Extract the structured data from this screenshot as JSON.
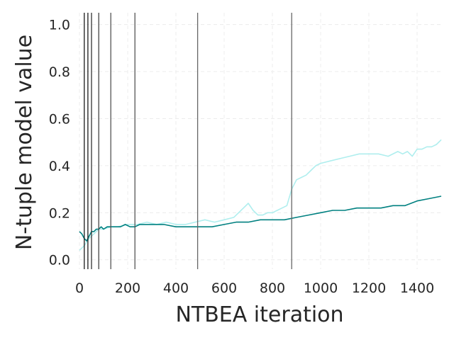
{
  "chart_data": {
    "type": "line",
    "xlabel": "NTBEA iteration",
    "ylabel": "N-tuple model value",
    "xlim": [
      0,
      1500
    ],
    "ylim": [
      -0.04,
      1.05
    ],
    "xticks": [
      0,
      200,
      400,
      600,
      800,
      1000,
      1200,
      1400
    ],
    "xtick_labels": [
      "0",
      "200",
      "400",
      "600",
      "800",
      "1000",
      "1200",
      "1400"
    ],
    "yticks": [
      0.0,
      0.2,
      0.4,
      0.6,
      0.8,
      1.0
    ],
    "ytick_labels": [
      "0.0",
      "0.2",
      "0.4",
      "0.6",
      "0.8",
      "1.0"
    ],
    "grid": true,
    "vertical_lines": [
      {
        "x": 20,
        "color": "#1a1a1a"
      },
      {
        "x": 35,
        "color": "#1a1a1a"
      },
      {
        "x": 50,
        "color": "#333333"
      },
      {
        "x": 80,
        "color": "#444444"
      },
      {
        "x": 130,
        "color": "#555555"
      },
      {
        "x": 230,
        "color": "#555555"
      },
      {
        "x": 490,
        "color": "#666666"
      },
      {
        "x": 880,
        "color": "#666666"
      }
    ],
    "series": [
      {
        "color": "#AFEEEE",
        "x": [
          0,
          20,
          40,
          60,
          80,
          100,
          130,
          160,
          200,
          240,
          280,
          320,
          360,
          400,
          440,
          480,
          520,
          560,
          600,
          640,
          660,
          680,
          700,
          720,
          740,
          760,
          780,
          800,
          820,
          840,
          860,
          880,
          900,
          920,
          940,
          960,
          980,
          1000,
          1040,
          1080,
          1120,
          1160,
          1200,
          1240,
          1280,
          1320,
          1340,
          1360,
          1380,
          1400,
          1420,
          1440,
          1460,
          1480,
          1500
        ],
        "y": [
          0.04,
          0.06,
          0.09,
          0.11,
          0.13,
          0.13,
          0.14,
          0.14,
          0.15,
          0.15,
          0.16,
          0.15,
          0.16,
          0.15,
          0.15,
          0.16,
          0.17,
          0.16,
          0.17,
          0.18,
          0.2,
          0.22,
          0.24,
          0.21,
          0.19,
          0.19,
          0.2,
          0.2,
          0.21,
          0.22,
          0.23,
          0.3,
          0.34,
          0.35,
          0.36,
          0.38,
          0.4,
          0.41,
          0.42,
          0.43,
          0.44,
          0.45,
          0.45,
          0.45,
          0.44,
          0.46,
          0.45,
          0.46,
          0.44,
          0.47,
          0.47,
          0.48,
          0.48,
          0.49,
          0.51
        ]
      },
      {
        "color": "#008080",
        "x": [
          0,
          10,
          20,
          30,
          40,
          50,
          60,
          70,
          80,
          90,
          100,
          115,
          130,
          150,
          170,
          190,
          210,
          230,
          250,
          300,
          350,
          400,
          450,
          500,
          550,
          600,
          650,
          700,
          750,
          800,
          850,
          900,
          950,
          1000,
          1050,
          1100,
          1150,
          1200,
          1250,
          1300,
          1350,
          1400,
          1450,
          1500
        ],
        "y": [
          0.12,
          0.11,
          0.09,
          0.08,
          0.1,
          0.12,
          0.12,
          0.13,
          0.13,
          0.14,
          0.13,
          0.14,
          0.14,
          0.14,
          0.14,
          0.15,
          0.14,
          0.14,
          0.15,
          0.15,
          0.15,
          0.14,
          0.14,
          0.14,
          0.14,
          0.15,
          0.16,
          0.16,
          0.17,
          0.17,
          0.17,
          0.18,
          0.19,
          0.2,
          0.21,
          0.21,
          0.22,
          0.22,
          0.22,
          0.23,
          0.23,
          0.25,
          0.26,
          0.27
        ]
      }
    ]
  }
}
